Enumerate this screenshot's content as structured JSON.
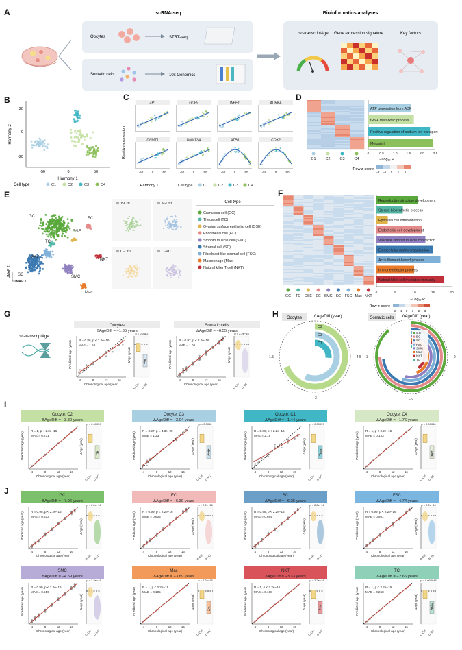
{
  "panel_letters": [
    "A",
    "B",
    "C",
    "D",
    "E",
    "F",
    "G",
    "H",
    "I",
    "J"
  ],
  "panelA": {
    "scrna_title": "scRNA-seq",
    "bio_title": "Bioinformatics analyses",
    "oocytes": "Oocytes",
    "strt": "STRT-seq",
    "somatic": "Somatic cells",
    "tenx": "10x Genomics",
    "transcript_age": "sc-transcriptAge",
    "signature": "Gene expression signature",
    "key_factors": "Key factors"
  },
  "panelB": {
    "ylabel": "Harmony 2",
    "xlabel": "Harmony 1",
    "yticks": [
      "20",
      "0",
      "-20"
    ],
    "xticks": [
      "-50",
      "0",
      "50"
    ],
    "legend_title": "Cell type",
    "legend": [
      "C1",
      "C2",
      "C3",
      "C4"
    ],
    "colors": [
      "#a9cfe3",
      "#c5e0a5",
      "#41b6c4",
      "#8cc05a"
    ]
  },
  "panelC": {
    "genes": [
      "ZP1",
      "GDF9",
      "WEE1",
      "AURKA",
      "DNMT1",
      "DNMT3A",
      "ATP8",
      "COX2"
    ],
    "ylabel": "Relative expression",
    "xlabel": "Harmony 1",
    "xticks": [
      "-50",
      "0",
      "50"
    ]
  },
  "panelD": {
    "terms": [
      "ATP generation from ADP",
      "tRNA metabolic process",
      "Positive regulation of sodium ion transport",
      "Meiosis I"
    ],
    "values": [
      1.6,
      1.7,
      2.3,
      2.4
    ],
    "bar_colors": [
      "#a9cfe3",
      "#c5e0a5",
      "#41b6c4",
      "#8cc05a"
    ],
    "xticks": [
      "0",
      "0.5",
      "1.0",
      "1.5",
      "2.0",
      "2.5"
    ],
    "xlabel": "−Log₁₀ P",
    "groups": [
      "C1",
      "C2",
      "C3",
      "C4"
    ],
    "zlabel": "Row z-score",
    "zticks": [
      "−2",
      "−1",
      "0",
      "1",
      "2"
    ]
  },
  "panelE": {
    "labels": [
      "GC",
      "TC",
      "EC",
      "OSE",
      "FSC",
      "NKT",
      "SC",
      "SMC",
      "Mac"
    ],
    "mini": [
      "Y-Ctrl",
      "M-Ctrl",
      "O-Ctrl",
      "O-VC"
    ],
    "legend_title": "Cell type",
    "legend": [
      "Granulosa cell (GC)",
      "Theca cell (TC)",
      "Ovarian surface epithelial cell (OSE)",
      "Endothelial cell (EC)",
      "Smooth muscle cell (SMC)",
      "Stromal cell (SC)",
      "Fibroblast-like stromal cell (FSC)",
      "Macrophage (Mac)",
      "Natural killer T cell (NKT)"
    ],
    "colors": [
      "#5aa83c",
      "#54b8a8",
      "#e0b24a",
      "#e48a8a",
      "#8f7fc0",
      "#3a78b0",
      "#7fb0d8",
      "#e87a2a",
      "#c0303a"
    ],
    "umap2": "UMAP 2",
    "umap1": "UMAP 1"
  },
  "panelF": {
    "terms": [
      "Reproductive structure development",
      "Steroid biosynthetic process",
      "Epithelial cell differentiation",
      "Endothelial cell development",
      "Vascular smooth muscle contraction",
      "Extracellular matrix organization",
      "Actin filament-based process",
      "Immune effector process",
      "Natural killer cell mediated immunity"
    ],
    "values": [
      11,
      7,
      3,
      12,
      13,
      15,
      17,
      10,
      18
    ],
    "xticks": [
      "0",
      "5",
      "10",
      "15",
      "20"
    ],
    "xlabel": "−Log₁₀ P",
    "groups": [
      "GC",
      "TC",
      "OSE",
      "EC",
      "SMC",
      "SC",
      "FSC",
      "Mac",
      "NKT"
    ],
    "zlabel": "Row z-score",
    "zticks": [
      "−2",
      "−1",
      "0",
      "1",
      "2",
      "3"
    ]
  },
  "panelG": {
    "tool": "sc-transcriptAge",
    "oocytes_title": "Oocytes",
    "oocytes_delta": "ΔAgeDiff = −1.35 years",
    "oocytes_stats": [
      "R = 0.86, p < 2.2e−16",
      "MAE = 1.58"
    ],
    "somatic_title": "Somatic cells",
    "somatic_delta": "ΔAgeDiff = −6.55 years",
    "somatic_stats": [
      "R = 0.97, p < 2.2e−16",
      "MAE = 1.06"
    ],
    "ylabel": "Predicted age (year)",
    "xlabel": "Chronological age (year)",
    "xticks": [
      "4",
      "8",
      "12",
      "16"
    ],
    "yticks": [
      "4",
      "8",
      "12",
      "16"
    ],
    "dage": "ΔAge (year)",
    "groups": [
      "O-Ctrl",
      "O-VC"
    ],
    "pval1": "p = 0.0482",
    "pval2": "p < 2.2e−16"
  },
  "panelH": {
    "oocytes": "Oocytes",
    "somatic": "Somatic cells",
    "title": "ΔAgeDiff (year)",
    "occ_labels": [
      "C2",
      "C3",
      "C1"
    ],
    "occ_ticks": [
      "−1.5",
      "−4.5",
      "−3"
    ],
    "som_labels": [
      "GC",
      "EC",
      "SC",
      "FSC",
      "SMC",
      "Mac",
      "NKT",
      "TC"
    ],
    "som_ticks": [
      "−3",
      "−9",
      "−6"
    ]
  },
  "panelI": [
    {
      "title": "Oocyte: C2",
      "delta": "ΔAgeDiff = −3.80 years",
      "stats": [
        "R = 1, p < 2.2e−16",
        "MAE = 0.271"
      ],
      "p": "p = 0.00039",
      "color": "#c5e0a5",
      "slope": 1.0
    },
    {
      "title": "Oocyte: C3",
      "delta": "ΔAgeDiff = −3.04 years",
      "stats": [
        "R = 0.97, p = 4.3e−09",
        "MAE = 1.33"
      ],
      "p": "p = 0.0040",
      "color": "#a9cfe3",
      "slope": 0.92
    },
    {
      "title": "Oocyte: C1",
      "delta": "ΔAgeDiff = −1.44 years",
      "stats": [
        "R = 0.80, p < 2.2e−16",
        "MAE = 2.18"
      ],
      "p": "p = 0.00037",
      "color": "#41b6c4",
      "slope": 0.7
    },
    {
      "title": "Oocyte: C4",
      "delta": "ΔAgeDiff = −1.76 years",
      "stats": [
        "R = 1, p < 2.2e−16",
        "MAE = 0.123"
      ],
      "p": "p = 0.00046",
      "color": "#d7e8c7",
      "slope": 1.0
    }
  ],
  "panelJ": [
    {
      "title": "GC",
      "delta": "ΔAgeDiff = −7.96 years",
      "stats": [
        "R = 0.98, p < 2.2e−16",
        "MAE = 0.613"
      ],
      "p": "p < 2.2e−16",
      "color": "#7dc06b"
    },
    {
      "title": "EC",
      "delta": "ΔAgeDiff = −6.39 years",
      "stats": [
        "R = 0.99, p < 2.2e−16",
        "MAE = 0.605"
      ],
      "p": "p < 2.2e−16",
      "color": "#f2b9b9"
    },
    {
      "title": "SC",
      "delta": "ΔAgeDiff = −6.25 years",
      "stats": [
        "R = 0.98, p < 2.2e−16",
        "MAE = 0.664"
      ],
      "p": "p < 2.2e−16",
      "color": "#6c9fc8"
    },
    {
      "title": "FSC",
      "delta": "ΔAgeDiff = −4.74 years",
      "stats": [
        "R = 0.99, p < 2.2e−16",
        "MAE = 0.501"
      ],
      "p": "p < 2.2e−16",
      "color": "#7ab6e0"
    },
    {
      "title": "SMC",
      "delta": "ΔAgeDiff = −4.59 years",
      "stats": [
        "R = 0.99, p < 2.2e−16",
        "MAE = 0.556"
      ],
      "p": "p < 2.2e−16",
      "color": "#b7acd8"
    },
    {
      "title": "Mac",
      "delta": "ΔAgeDiff = −3.69 years",
      "stats": [
        "R = 1, p < 2.2e−16",
        "MAE = 0.105"
      ],
      "p": "p = 2.2e−16",
      "color": "#f29a5a"
    },
    {
      "title": "NKT",
      "delta": "ΔAgeDiff = −3.33 years",
      "stats": [
        "R = 1, p < 2.2e−16",
        "MAE = 0.188"
      ],
      "p": "p < 2.2e−16",
      "color": "#d9545a"
    },
    {
      "title": "TC",
      "delta": "ΔAgeDiff = −2.66 years",
      "stats": [
        "R = 1, p < 2.2e−16",
        "MAE = 0.258"
      ],
      "p": "p = 0.000046",
      "color": "#8fd0b8"
    }
  ],
  "axis": {
    "pred": "Predicted age (year)",
    "chron": "Chronological age (year)",
    "dage": "ΔAge (year)",
    "xticks": [
      "4",
      "8",
      "12",
      "16"
    ],
    "groups": [
      "O-Ctrl",
      "O-VC"
    ]
  }
}
